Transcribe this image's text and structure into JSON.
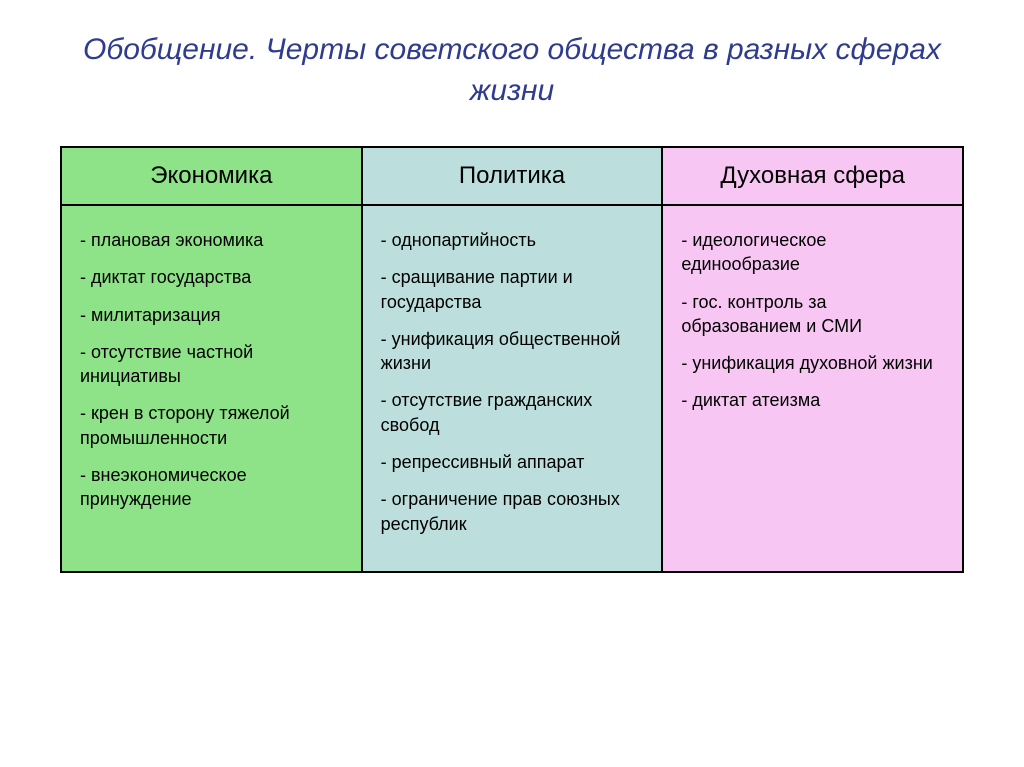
{
  "title": "Обобщение. Черты советского общества в разных сферах жизни",
  "columns": [
    {
      "header": "Экономика",
      "bg_color": "#8ee288",
      "items": [
        "- плановая экономика",
        "- диктат государства",
        "- милитаризация",
        "- отсутствие частной инициативы",
        "- крен в сторону тяжелой промышленности",
        "- внеэкономическое принуждение"
      ]
    },
    {
      "header": "Политика",
      "bg_color": "#bcdedc",
      "items": [
        "- однопартийность",
        "- сращивание партии и государства",
        "- унификация общественной жизни",
        "- отсутствие гражданских свобод",
        "- репрессивный аппарат",
        "- ограничение прав союзных республик"
      ]
    },
    {
      "header": "Духовная сфера",
      "bg_color": "#f7c6f2",
      "items": [
        "- идеологическое единообразие",
        "- гос. контроль за образованием и СМИ",
        "- унификация духовной жизни",
        "- диктат атеизма"
      ]
    }
  ]
}
